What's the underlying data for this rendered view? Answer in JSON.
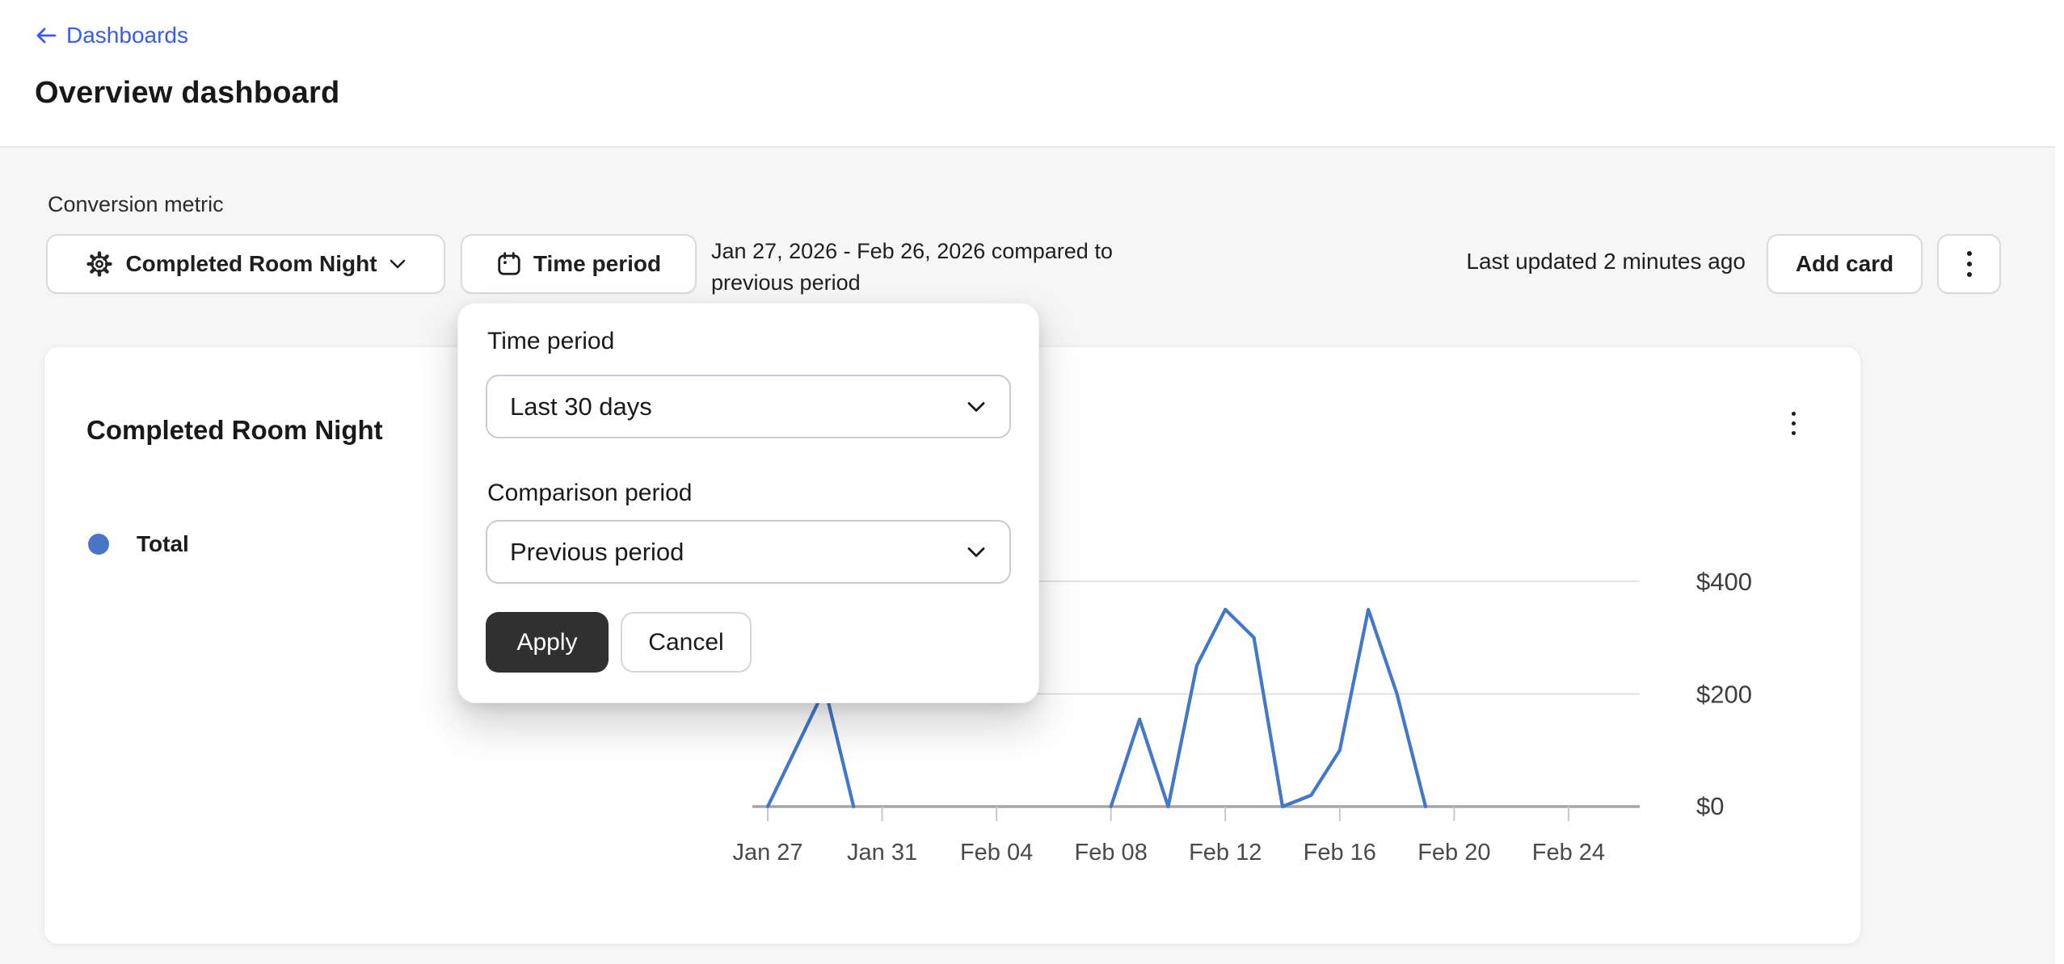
{
  "header": {
    "back_label": "Dashboards",
    "title": "Overview dashboard"
  },
  "toolbar": {
    "metric_label": "Conversion metric",
    "metric_value": "Completed Room Night",
    "time_period_button": "Time period",
    "date_range_line1": "Jan 27, 2026 - Feb 26, 2026 compared to",
    "date_range_line2": "previous period",
    "last_updated": "Last updated 2 minutes ago",
    "add_card_label": "Add card"
  },
  "popover": {
    "time_period_label": "Time period",
    "time_period_value": "Last 30 days",
    "comparison_label": "Comparison period",
    "comparison_value": "Previous period",
    "apply_label": "Apply",
    "cancel_label": "Cancel"
  },
  "card": {
    "title": "Completed Room Night",
    "legend_total": "Total"
  },
  "chart_data": {
    "type": "line",
    "title": "Completed Room Night",
    "categories": [
      "Jan 27",
      "Jan 28",
      "Jan 29",
      "Jan 30",
      "Jan 31",
      "Feb 01",
      "Feb 02",
      "Feb 03",
      "Feb 04",
      "Feb 05",
      "Feb 06",
      "Feb 07",
      "Feb 08",
      "Feb 09",
      "Feb 10",
      "Feb 11",
      "Feb 12",
      "Feb 13",
      "Feb 14",
      "Feb 15",
      "Feb 16",
      "Feb 17",
      "Feb 18",
      "Feb 19",
      "Feb 20",
      "Feb 21",
      "Feb 22",
      "Feb 23",
      "Feb 24",
      "Feb 25",
      "Feb 26"
    ],
    "series": [
      {
        "name": "Total",
        "values": [
          0,
          105,
          210,
          0,
          0,
          0,
          0,
          0,
          0,
          0,
          0,
          0,
          0,
          155,
          0,
          250,
          350,
          300,
          0,
          20,
          100,
          350,
          200,
          0,
          0,
          0,
          0,
          0,
          0,
          0,
          0
        ]
      }
    ],
    "x_tick_labels": [
      "Jan 27",
      "Jan 31",
      "Feb 04",
      "Feb 08",
      "Feb 12",
      "Feb 16",
      "Feb 20",
      "Feb 24"
    ],
    "x_tick_every": 4,
    "y_ticks": [
      0,
      200,
      400
    ],
    "y_tick_labels": [
      "$0",
      "$200",
      "$400"
    ],
    "ylim": [
      0,
      450
    ],
    "grid": "horizontal",
    "legend_position": "top-left",
    "line_color": "#4377c8"
  },
  "colors": {
    "link_blue": "#3a5ce8",
    "legend_dot": "#4876c6",
    "apply_bg": "#303030"
  }
}
